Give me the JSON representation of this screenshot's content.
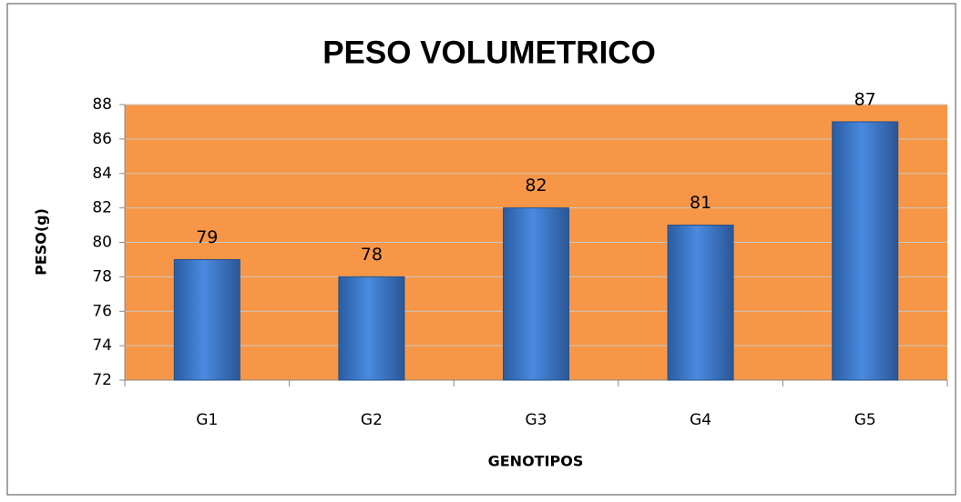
{
  "chart_data": {
    "type": "bar",
    "title": "PESO VOLUMETRICO",
    "x_label": "GENOTIPOS",
    "y_label": "PESO(g)",
    "categories": [
      "G1",
      "G2",
      "G3",
      "G4",
      "G5"
    ],
    "values": [
      79,
      78,
      82,
      81,
      87
    ],
    "color": "#3f7fd0",
    "plot_background": "#f79646",
    "ylim": [
      72,
      88
    ],
    "yticks": [
      72,
      74,
      76,
      78,
      80,
      82,
      84,
      86,
      88
    ],
    "grid": true
  }
}
